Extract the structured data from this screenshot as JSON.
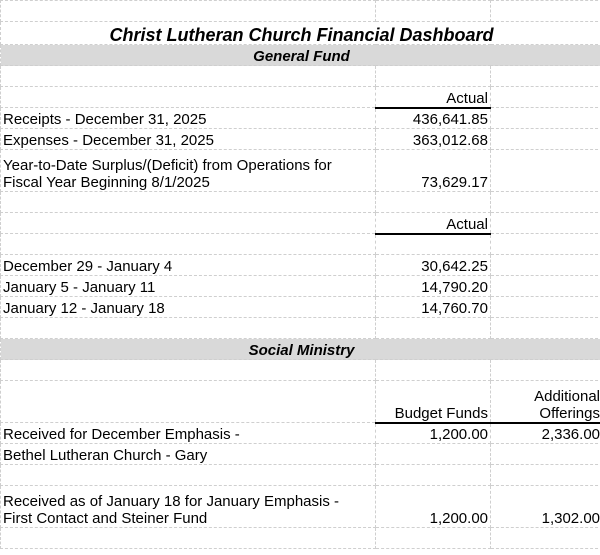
{
  "title": "Christ Lutheran Church Financial Dashboard",
  "general_fund": {
    "heading": "General Fund",
    "summary_header": "Actual",
    "summary_rows": [
      {
        "label": "Receipts - December 31, 2025",
        "actual": "436,641.85"
      },
      {
        "label": "Expenses - December 31, 2025",
        "actual": "363,012.68"
      },
      {
        "label": "Year-to-Date Surplus/(Deficit) from Operations for Fiscal Year Beginning 8/1/2025",
        "label_line1": "Year-to-Date Surplus/(Deficit) from Operations for",
        "label_line2": "Fiscal Year Beginning 8/1/2025",
        "actual": "73,629.17"
      }
    ],
    "weekly_header": "Actual",
    "weekly_rows": [
      {
        "label": "December 29 - January 4",
        "actual": "30,642.25"
      },
      {
        "label": "January 5 - January 11",
        "actual": "14,790.20"
      },
      {
        "label": "January 12 - January 18",
        "actual": "14,760.70"
      }
    ]
  },
  "social_ministry": {
    "heading": "Social Ministry",
    "col_budget": "Budget Funds",
    "col_additional_line1": "Additional",
    "col_additional_line2": "Offerings",
    "rows": [
      {
        "label": "Received for December Emphasis -",
        "budget": "1,200.00",
        "additional": "2,336.00"
      },
      {
        "label": "Bethel Lutheran Church - Gary"
      },
      {
        "label_line1": "Received as of January 18 for January Emphasis -",
        "label_line2": "First Contact and Steiner Fund",
        "budget": "1,200.00",
        "additional": "1,302.00"
      }
    ]
  }
}
